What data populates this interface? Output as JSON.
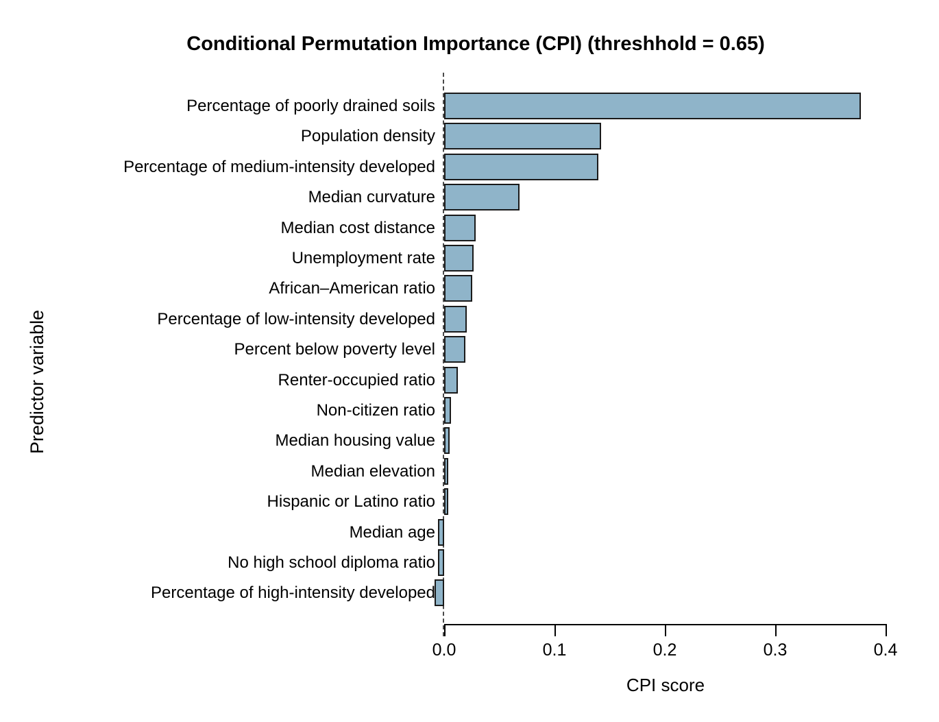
{
  "title": "Conditional Permutation Importance (CPI) (threshhold = 0.65)",
  "chart_data": {
    "type": "bar",
    "orientation": "horizontal",
    "title": "Conditional Permutation Importance (CPI) (threshhold = 0.65)",
    "xlabel": "CPI score",
    "ylabel": "Predictor variable",
    "categories": [
      "Percentage of poorly drained soils",
      "Population density",
      "Percentage of medium-intensity developed",
      "Median curvature",
      "Median cost distance",
      "Unemployment rate",
      "African–American ratio",
      "Percentage of low-intensity developed",
      "Percent below poverty level",
      "Renter-occupied ratio",
      "Non-citizen ratio",
      "Median housing value",
      "Median elevation",
      "Hispanic or Latino ratio",
      "Median age",
      "No high school diploma ratio",
      "Percentage of high-intensity developed"
    ],
    "values": [
      0.375,
      0.14,
      0.137,
      0.066,
      0.026,
      0.024,
      0.023,
      0.018,
      0.017,
      0.01,
      0.004,
      0.0025,
      0.0015,
      0.001,
      -0.003,
      -0.003,
      -0.006
    ],
    "xlim": [
      -0.01,
      0.4
    ],
    "xticks": [
      0.0,
      0.1,
      0.2,
      0.3,
      0.4
    ],
    "xtick_labels": [
      "0.0",
      "0.1",
      "0.2",
      "0.3",
      "0.4"
    ],
    "grid": false,
    "legend": null,
    "zero_line_style": "dashed",
    "bar_fill_color": "#8FB4C9",
    "bar_border_color": "#1a1a1a",
    "axis_color": "#000000"
  }
}
